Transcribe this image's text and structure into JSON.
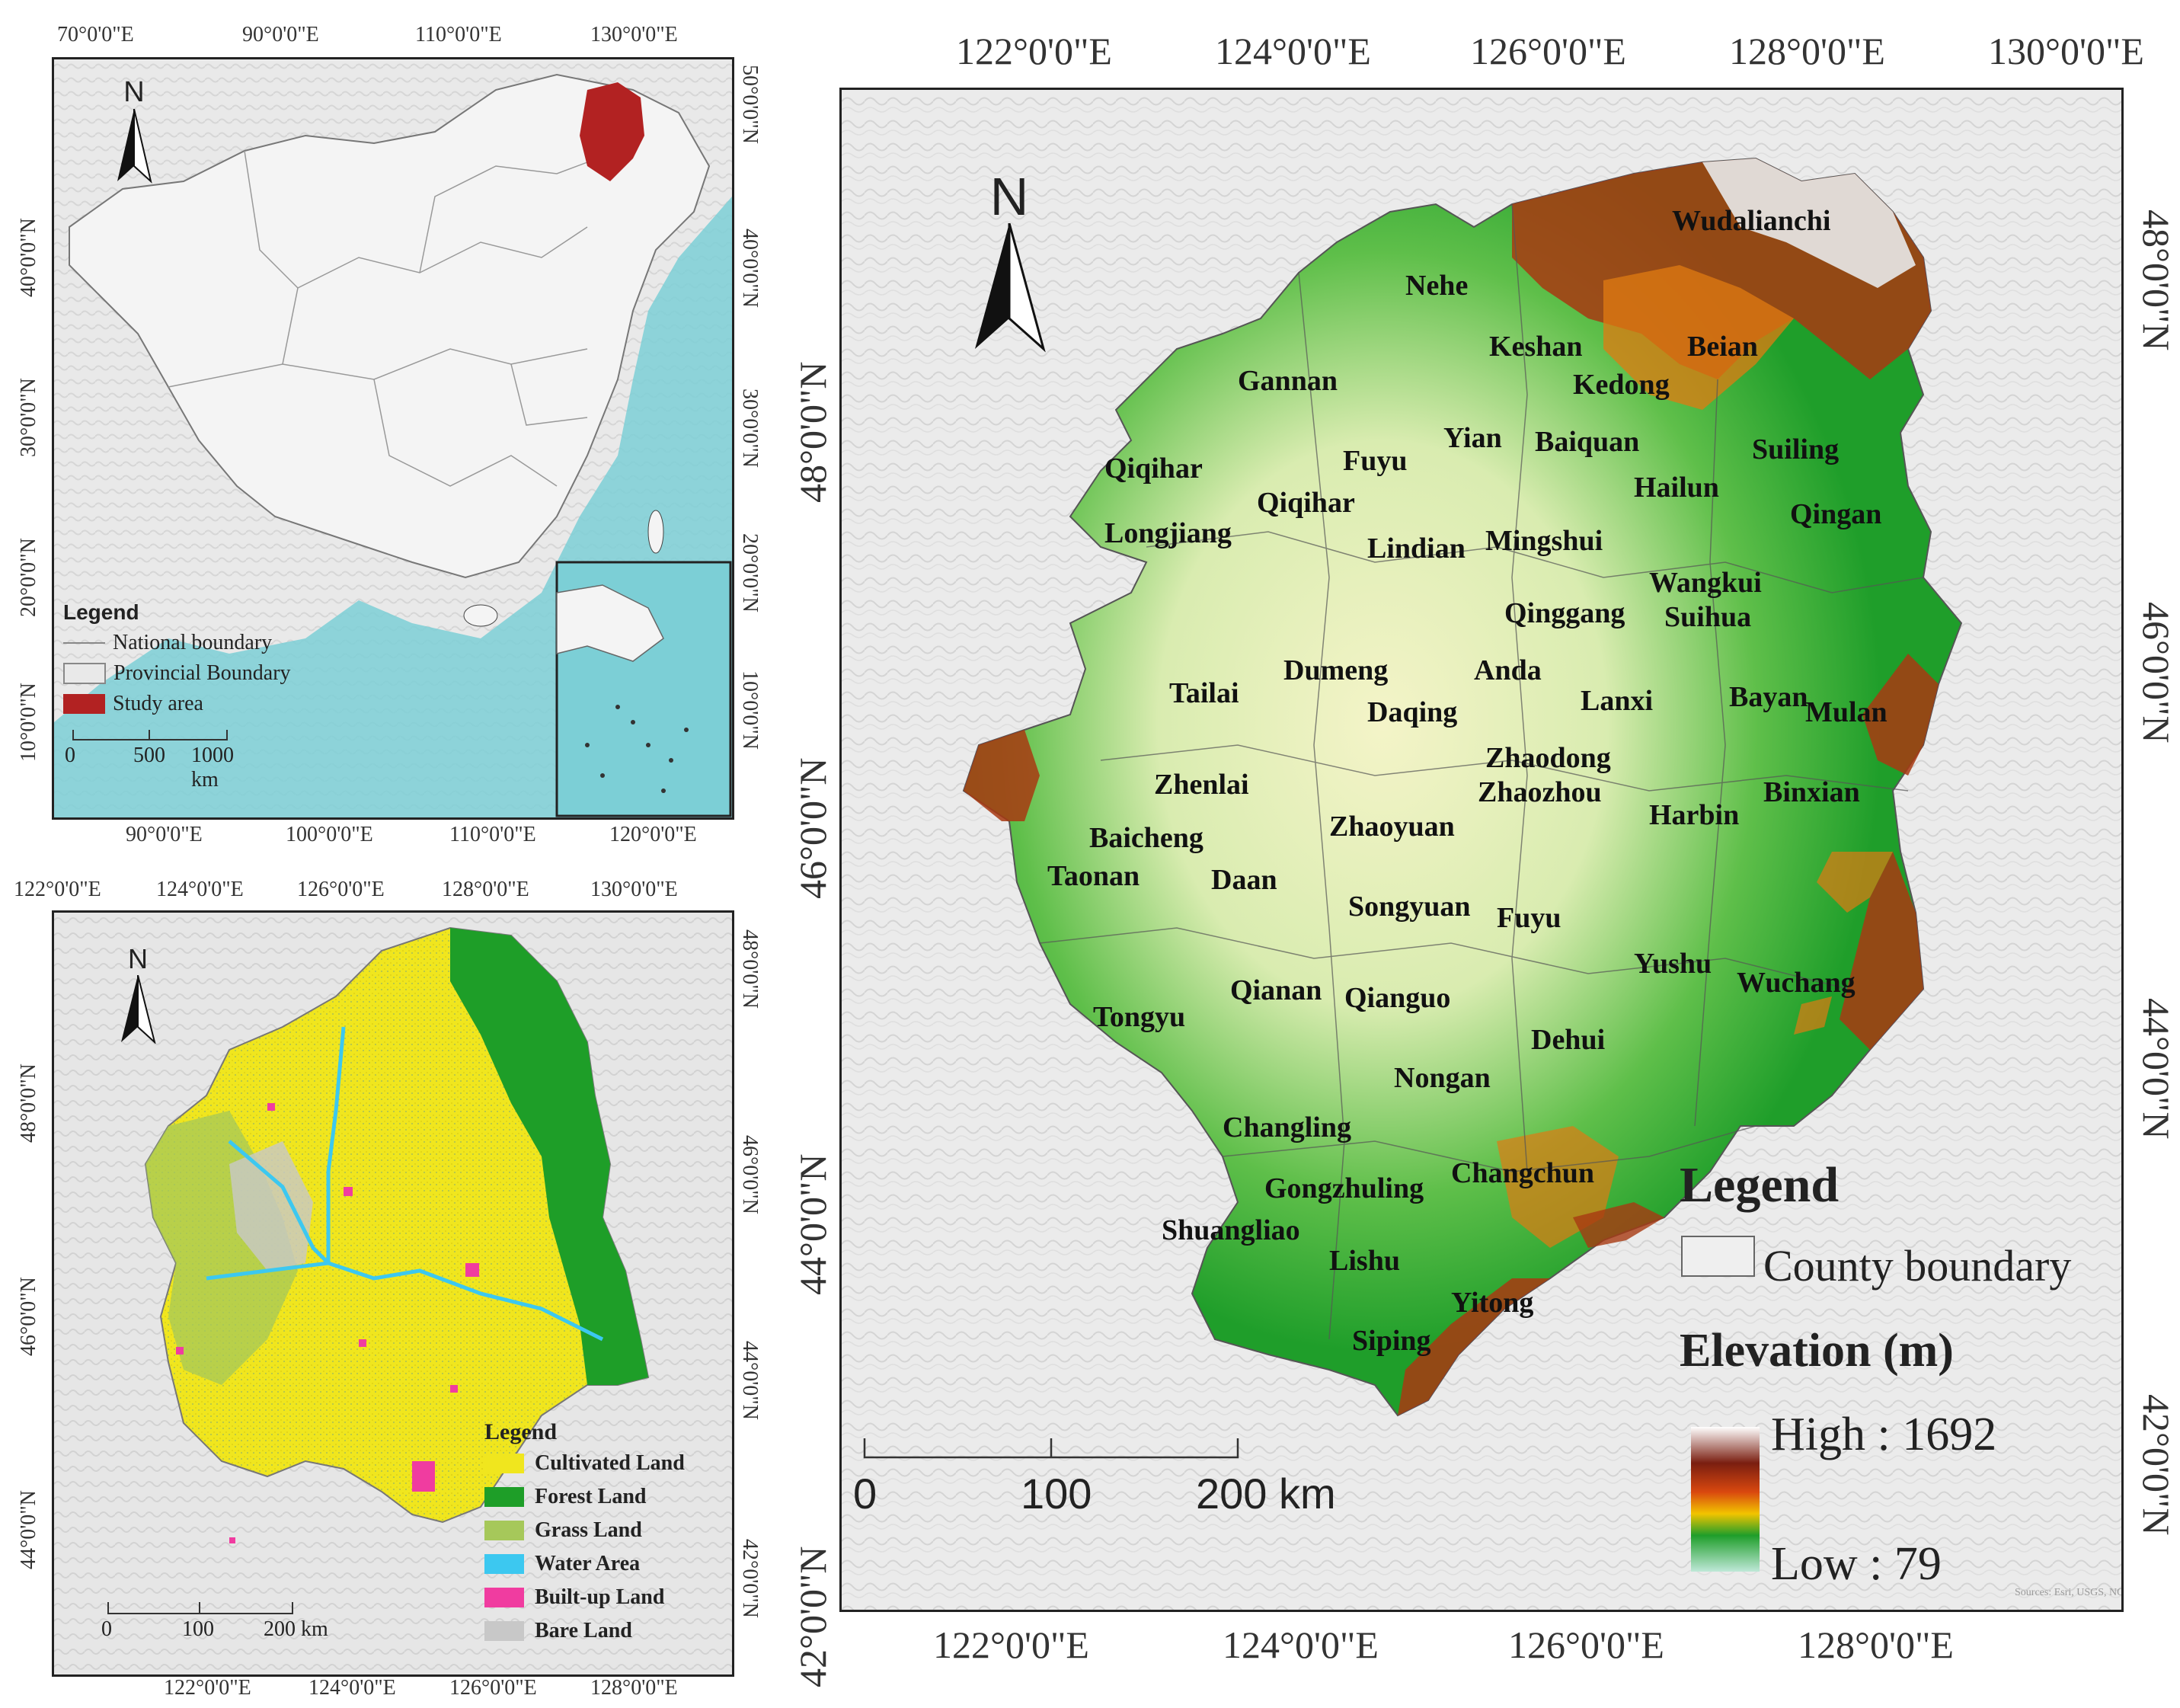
{
  "china_map": {
    "top_ticks": [
      "70°0'0\"E",
      "90°0'0\"E",
      "110°0'0\"E",
      "130°0'0\"E"
    ],
    "bottom_ticks": [
      "90°0'0\"E",
      "100°0'0\"E",
      "110°0'0\"E",
      "120°0'0\"E"
    ],
    "left_ticks": [
      "40°0'0\"N",
      "30°0'0\"N",
      "20°0'0\"N",
      "10°0'0\"N"
    ],
    "right_ticks": [
      "50°0'0\"N",
      "40°0'0\"N",
      "30°0'0\"N",
      "20°0'0\"N",
      "10°0'0\"N"
    ],
    "north": "N",
    "legend": {
      "title": "Legend",
      "items": [
        {
          "label": "National boundary",
          "color": "#888888"
        },
        {
          "label": "Provincial Boundary",
          "color": "#888888"
        },
        {
          "label": "Study area",
          "color": "#b22222"
        }
      ]
    },
    "scale": [
      "0",
      "500",
      "1000 km"
    ]
  },
  "landuse_map": {
    "top_ticks": [
      "122°0'0\"E",
      "124°0'0\"E",
      "126°0'0\"E",
      "128°0'0\"E",
      "130°0'0\"E"
    ],
    "bottom_ticks": [
      "122°0'0\"E",
      "124°0'0\"E",
      "126°0'0\"E",
      "128°0'0\"E"
    ],
    "left_ticks": [
      "48°0'0\"N",
      "46°0'0\"N",
      "44°0'0\"N"
    ],
    "right_ticks": [
      "48°0'0\"N",
      "46°0'0\"N",
      "44°0'0\"N",
      "42°0'0\"N"
    ],
    "north": "N",
    "legend": {
      "title": "Legend",
      "items": [
        {
          "label": "Cultivated Land",
          "color": "#f0e61e"
        },
        {
          "label": "Forest Land",
          "color": "#1e9e28"
        },
        {
          "label": "Grass Land",
          "color": "#a6c85a"
        },
        {
          "label": "Water Area",
          "color": "#3cc8f0"
        },
        {
          "label": "Built-up Land",
          "color": "#f03ca0"
        },
        {
          "label": "Bare Land",
          "color": "#c8c8c8"
        }
      ]
    },
    "scale": [
      "0",
      "100",
      "200 km"
    ]
  },
  "elevation_map": {
    "top_ticks": [
      "122°0'0\"E",
      "124°0'0\"E",
      "126°0'0\"E",
      "128°0'0\"E",
      "130°0'0\"E"
    ],
    "bottom_ticks": [
      "122°0'0\"E",
      "124°0'0\"E",
      "126°0'0\"E",
      "128°0'0\"E"
    ],
    "left_ticks": [
      "48°0'0\"N",
      "46°0'0\"N",
      "44°0'0\"N",
      "42°0'0\"N"
    ],
    "right_ticks": [
      "48°0'0\"N",
      "46°0'0\"N",
      "44°0'0\"N",
      "42°0'0\"N"
    ],
    "north": "N",
    "legend": {
      "title": "Legend",
      "county_boundary": "County boundary",
      "elevation_title": "Elevation (m)",
      "high": "High : 1692",
      "low": "Low : 79"
    },
    "scale": [
      "0",
      "100",
      "200 km"
    ],
    "source": "Sources: Esri, USGS, NOAA",
    "places": [
      "Wudalianchi",
      "Nehe",
      "Keshan",
      "Beian",
      "Kedong",
      "Gannan",
      "Yian",
      "Baiquan",
      "Suiling",
      "Qiqihar",
      "Fuyu",
      "Hailun",
      "Qiqihar",
      "Qingan",
      "Longjiang",
      "Lindian",
      "Mingshui",
      "Wangkui",
      "Qinggang",
      "Suihua",
      "Dumeng",
      "Anda",
      "Tailai",
      "Lanxi",
      "Bayan",
      "Mulan",
      "Daqing",
      "Zhaodong",
      "Zhenlai",
      "Zhaozhou",
      "Binxian",
      "Zhaoyuan",
      "Harbin",
      "Baicheng",
      "Taonan",
      "Daan",
      "Songyuan",
      "Fuyu",
      "Yushu",
      "Wuchang",
      "Qianan",
      "Qianguo",
      "Tongyu",
      "Dehui",
      "Nongan",
      "Changling",
      "Changchun",
      "Gongzhuling",
      "Shuangliao",
      "Lishu",
      "Yitong",
      "Siping"
    ]
  }
}
